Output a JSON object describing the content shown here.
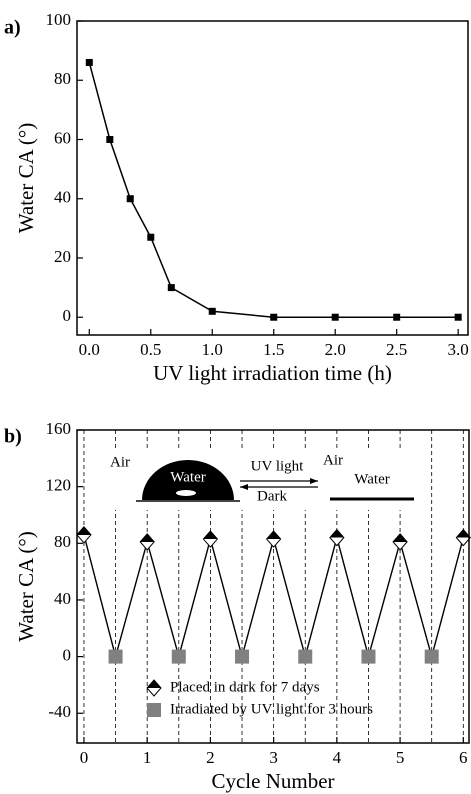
{
  "chart_data": [
    {
      "type": "line",
      "panel_label": "a)",
      "xlabel": "UV light irradiation time (h)",
      "ylabel": "Water CA (°)",
      "x": [
        0,
        0.167,
        0.333,
        0.5,
        0.667,
        1.0,
        1.5,
        2.0,
        2.5,
        3.0
      ],
      "series": [
        {
          "color": "#000000",
          "values": [
            86,
            60,
            40,
            27,
            10,
            2,
            0,
            0,
            0,
            0
          ]
        }
      ],
      "xlim": [
        -0.1,
        3.08
      ],
      "ylim": [
        -6,
        100
      ],
      "xticks": [
        {
          "value": 0,
          "label": "0.0"
        },
        0.5,
        {
          "value": 1,
          "label": "1.0"
        },
        1.5,
        {
          "value": 2,
          "label": "2.0"
        },
        2.5,
        {
          "value": 3,
          "label": "3.0"
        }
      ],
      "yticks": [
        0,
        20,
        40,
        60,
        80,
        100
      ]
    },
    {
      "type": "scatter",
      "panel_label": "b)",
      "xlabel": "Cycle Number",
      "ylabel": "Water CA (°)",
      "series": [
        {
          "name": "Placed in dark for 7 days",
          "marker": "diamond",
          "color": "#000000",
          "x": [
            0,
            1,
            2,
            3,
            4,
            5,
            6
          ],
          "values": [
            86,
            81,
            83,
            83,
            84,
            81,
            84
          ]
        },
        {
          "name": "Irradiated by UV light for 3 hours",
          "marker": "square",
          "color": "#808080",
          "x": [
            0.5,
            1.5,
            2.5,
            3.5,
            4.5,
            5.5
          ],
          "values": [
            0,
            0,
            0,
            0,
            0,
            0
          ]
        }
      ],
      "annotations": [
        "Air",
        "Water",
        "UV light",
        "Dark",
        "Air",
        "Water"
      ],
      "xlim": [
        -0.11,
        6.09
      ],
      "ylim": [
        -61,
        160
      ],
      "xticks": [
        0,
        1,
        2,
        3,
        4,
        5,
        6
      ],
      "yticks": [
        -40,
        0,
        40,
        80,
        120,
        160
      ]
    }
  ]
}
